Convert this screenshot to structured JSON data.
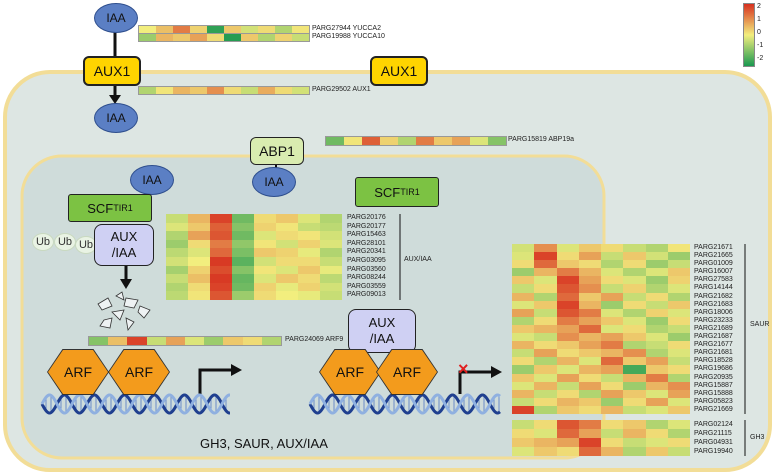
{
  "colors": {
    "cell_background": "#dde6e3",
    "nucleus_background": "#cfdcda",
    "membrane": "#f2dd97",
    "iaa": "#5b7fc4",
    "aux1": "#ffd400",
    "scf": "#7cc243",
    "abp1": "#d9ecb0",
    "aux_iaa": "#cfd0f3",
    "arf": "#f39b1c",
    "dna_dark": "#1f3f8f",
    "dna_light": "#8fb0e0",
    "heat_high": "#d7301f",
    "heat_mid": "#f2ee7e",
    "heat_low": "#1a9850"
  },
  "labels": {
    "iaa": "IAA",
    "aux1": "AUX1",
    "abp1": "ABP1",
    "scf": "SCF",
    "tir1": "TIR1",
    "aux_iaa_line1": "AUX",
    "aux_iaa_line2": "/IAA",
    "arf": "ARF",
    "ub": "Ub",
    "bottom": "GH3, SAUR, AUX/IAA",
    "blocked_mark": "×"
  },
  "legend": {
    "ticks": [
      "2",
      "1",
      "0",
      "-1",
      "-2"
    ]
  },
  "single_genes": {
    "yucca2": {
      "label": "PARG27944 YUCCA2",
      "values": [
        0,
        0.5,
        1.2,
        0.3,
        -1.8,
        0.4,
        -0.3,
        0.2,
        -0.6,
        0.1
      ]
    },
    "yucca10": {
      "label": "PARG19988 YUCCA10",
      "values": [
        -0.8,
        0.6,
        0.4,
        0.8,
        0.2,
        -1.9,
        0.4,
        -0.6,
        0.3,
        -0.4
      ]
    },
    "aux1": {
      "label": "PARG29502 AUX1",
      "values": [
        -0.6,
        0.1,
        0.6,
        0.4,
        1.0,
        0.2,
        -0.4,
        0.7,
        0.2,
        -0.3
      ]
    },
    "abp19a": {
      "label": "PARG15819 ABP19a",
      "values": [
        -1.2,
        0.1,
        1.5,
        0.3,
        -0.6,
        1.2,
        0.4,
        0.8,
        -0.2,
        -1.0
      ]
    },
    "arf9": {
      "label": "PARG24069 ARF9",
      "values": [
        -1.0,
        0.5,
        1.8,
        -0.4,
        0.8,
        -0.2,
        -0.8,
        0.4,
        0.2,
        -0.6
      ]
    }
  },
  "aux_iaa_block": {
    "title": "AUX/IAA",
    "genes": [
      "PARG20176",
      "PARG20177",
      "PARG15463",
      "PARG28101",
      "PARG20341",
      "PARG03095",
      "PARG03560",
      "PARG08244",
      "PARG03559",
      "PARG09013"
    ],
    "values": [
      [
        -0.4,
        0.6,
        1.8,
        -1.2,
        0.2,
        0.4,
        -0.2,
        -0.6
      ],
      [
        -0.2,
        0.4,
        1.5,
        -1.0,
        0.3,
        0.1,
        -0.4,
        -0.5
      ],
      [
        -0.6,
        0.8,
        1.6,
        -1.2,
        -0.2,
        0.2,
        0.1,
        -0.3
      ],
      [
        -0.8,
        0.2,
        1.2,
        -0.9,
        0.1,
        -0.3,
        0.3,
        -0.2
      ],
      [
        -0.5,
        -0.2,
        1.4,
        -1.1,
        0.4,
        0.3,
        -0.1,
        -0.6
      ],
      [
        -0.3,
        0.0,
        1.9,
        -1.4,
        -0.3,
        0.2,
        0.2,
        -0.4
      ],
      [
        -0.7,
        0.3,
        1.7,
        -1.0,
        0.1,
        -0.2,
        0.4,
        -0.1
      ],
      [
        -0.4,
        0.5,
        1.9,
        -1.3,
        -0.2,
        0.4,
        0.2,
        -0.5
      ],
      [
        -0.6,
        0.2,
        1.8,
        -1.2,
        0.3,
        -0.1,
        0.3,
        -0.3
      ],
      [
        -0.5,
        0.1,
        1.6,
        -0.8,
        0.2,
        0.0,
        -0.1,
        -0.4
      ]
    ]
  },
  "saur_block": {
    "title": "SAUR",
    "genes": [
      "PARG21671",
      "PARG21665",
      "PARG01009",
      "PARG16007",
      "PARG27583",
      "PARG14144",
      "PARG21682",
      "PARG21683",
      "PARG18006",
      "PARG23233",
      "PARG21689",
      "PARG21687",
      "PARG21677",
      "PARG21681",
      "PARG18528",
      "PARG19686",
      "PARG20935",
      "PARG15887",
      "PARG15888",
      "PARG05823",
      "PARG21669"
    ],
    "values": [
      [
        -0.3,
        1.0,
        -0.2,
        0.4,
        0.2,
        -0.4,
        -0.6,
        0.1
      ],
      [
        -0.2,
        1.8,
        0.2,
        0.8,
        -0.4,
        0.4,
        -0.3,
        -0.8
      ],
      [
        0.2,
        1.4,
        0.4,
        0.2,
        -0.6,
        0.2,
        -0.8,
        -0.4
      ],
      [
        -0.8,
        0.6,
        1.2,
        0.6,
        -0.2,
        -0.6,
        -0.2,
        0.4
      ],
      [
        0.4,
        -0.2,
        1.8,
        0.8,
        0.2,
        -0.2,
        -0.8,
        0.3
      ],
      [
        -0.4,
        0.2,
        1.6,
        1.0,
        -0.4,
        0.3,
        -0.6,
        -0.2
      ],
      [
        0.6,
        -0.6,
        1.4,
        0.4,
        0.8,
        -0.4,
        0.2,
        -0.6
      ],
      [
        -0.2,
        0.4,
        1.8,
        0.6,
        -0.8,
        0.2,
        -0.4,
        0.4
      ],
      [
        0.8,
        -0.4,
        1.6,
        1.2,
        -0.2,
        -0.6,
        0.3,
        -0.2
      ],
      [
        -0.6,
        0.2,
        1.2,
        0.8,
        0.4,
        -0.2,
        -0.8,
        0.2
      ],
      [
        0.4,
        0.6,
        0.8,
        1.4,
        -0.2,
        0.2,
        -0.6,
        -0.4
      ],
      [
        -0.2,
        -0.4,
        1.0,
        0.6,
        0.8,
        0.4,
        -0.2,
        -0.8
      ],
      [
        0.6,
        0.2,
        0.4,
        0.8,
        1.2,
        -0.6,
        -0.4,
        0.2
      ],
      [
        -0.4,
        0.8,
        0.2,
        0.4,
        0.6,
        1.0,
        -0.6,
        -0.2
      ],
      [
        0.2,
        -0.6,
        0.6,
        -0.2,
        1.4,
        0.4,
        0.8,
        -0.4
      ],
      [
        -0.8,
        0.4,
        -0.2,
        0.6,
        0.8,
        -1.6,
        0.4,
        0.2
      ],
      [
        0.4,
        -0.2,
        0.8,
        0.2,
        -0.4,
        0.6,
        1.2,
        -0.6
      ],
      [
        -0.2,
        0.6,
        -0.4,
        0.8,
        0.2,
        -0.8,
        0.6,
        1.0
      ],
      [
        0.6,
        -0.4,
        0.2,
        -0.6,
        0.8,
        0.4,
        -0.2,
        0.8
      ],
      [
        -0.4,
        0.2,
        0.6,
        0.4,
        -0.8,
        0.2,
        0.8,
        -0.2
      ],
      [
        1.8,
        -0.6,
        0.4,
        0.2,
        0.6,
        -0.4,
        -0.2,
        0.4
      ]
    ]
  },
  "gh3_block": {
    "title": "GH3",
    "genes": [
      "PARG02124",
      "PARG21115",
      "PARG04931",
      "PARG19940"
    ],
    "values": [
      [
        -0.4,
        0.2,
        1.6,
        1.2,
        0.2,
        0.4,
        -0.6,
        -0.2
      ],
      [
        0.2,
        -0.2,
        1.4,
        0.8,
        -0.4,
        0.6,
        0.2,
        -0.6
      ],
      [
        0.4,
        0.6,
        0.8,
        1.8,
        0.2,
        -0.4,
        -0.2,
        0.2
      ],
      [
        -0.2,
        0.4,
        0.2,
        1.4,
        0.6,
        -0.6,
        0.4,
        -0.4
      ]
    ]
  }
}
